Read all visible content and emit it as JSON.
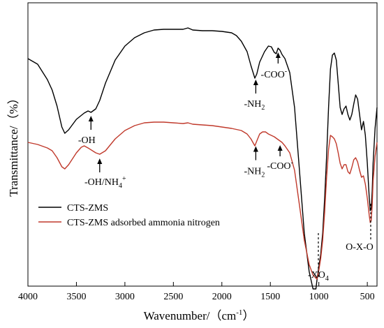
{
  "chart_data": {
    "type": "line",
    "xlabel": "Wavenumber/（cm",
    "xlabel_sup": "-1",
    "xlabel_end": "）",
    "ylabel": "Transmittance/（%）",
    "xlim": [
      4000,
      400
    ],
    "x_reversed": true,
    "y_ticks_shown": false,
    "xticks": [
      {
        "value": 4000,
        "label": "4000"
      },
      {
        "value": 3500,
        "label": "3500"
      },
      {
        "value": 3000,
        "label": "3000"
      },
      {
        "value": 2500,
        "label": "2500"
      },
      {
        "value": 2000,
        "label": "2000"
      },
      {
        "value": 1500,
        "label": "1500"
      },
      {
        "value": 1000,
        "label": "1000"
      },
      {
        "value": 500,
        "label": "500"
      }
    ],
    "legend_position": "bottom-left",
    "series": [
      {
        "name": "CTS-ZMS",
        "color": "#000000",
        "points": [
          [
            4000,
            80
          ],
          [
            3900,
            88
          ],
          [
            3800,
            110
          ],
          [
            3750,
            125
          ],
          [
            3700,
            148
          ],
          [
            3650,
            178
          ],
          [
            3620,
            187
          ],
          [
            3580,
            182
          ],
          [
            3500,
            167
          ],
          [
            3420,
            158
          ],
          [
            3380,
            155
          ],
          [
            3350,
            157
          ],
          [
            3300,
            152
          ],
          [
            3260,
            140
          ],
          [
            3200,
            115
          ],
          [
            3100,
            82
          ],
          [
            3000,
            62
          ],
          [
            2900,
            50
          ],
          [
            2800,
            43
          ],
          [
            2700,
            39
          ],
          [
            2600,
            38
          ],
          [
            2500,
            38
          ],
          [
            2400,
            38
          ],
          [
            2350,
            36
          ],
          [
            2300,
            39
          ],
          [
            2200,
            40
          ],
          [
            2100,
            40
          ],
          [
            2000,
            41
          ],
          [
            1900,
            43
          ],
          [
            1850,
            47
          ],
          [
            1800,
            55
          ],
          [
            1740,
            70
          ],
          [
            1700,
            90
          ],
          [
            1660,
            108
          ],
          [
            1640,
            102
          ],
          [
            1610,
            85
          ],
          [
            1560,
            70
          ],
          [
            1520,
            62
          ],
          [
            1490,
            63
          ],
          [
            1460,
            71
          ],
          [
            1440,
            73
          ],
          [
            1420,
            65
          ],
          [
            1400,
            68
          ],
          [
            1380,
            74
          ],
          [
            1350,
            80
          ],
          [
            1300,
            100
          ],
          [
            1250,
            150
          ],
          [
            1200,
            240
          ],
          [
            1150,
            330
          ],
          [
            1100,
            385
          ],
          [
            1060,
            410
          ],
          [
            1030,
            410
          ],
          [
            1020,
            398
          ],
          [
            1000,
            378
          ],
          [
            980,
            360
          ],
          [
            960,
            330
          ],
          [
            940,
            280
          ],
          [
            920,
            220
          ],
          [
            900,
            150
          ],
          [
            880,
            95
          ],
          [
            860,
            75
          ],
          [
            840,
            72
          ],
          [
            820,
            82
          ],
          [
            800,
            115
          ],
          [
            780,
            150
          ],
          [
            760,
            160
          ],
          [
            740,
            152
          ],
          [
            720,
            148
          ],
          [
            700,
            160
          ],
          [
            680,
            168
          ],
          [
            660,
            160
          ],
          [
            640,
            145
          ],
          [
            620,
            132
          ],
          [
            600,
            138
          ],
          [
            580,
            160
          ],
          [
            560,
            182
          ],
          [
            540,
            170
          ],
          [
            520,
            190
          ],
          [
            500,
            230
          ],
          [
            480,
            280
          ],
          [
            470,
            298
          ],
          [
            460,
            295
          ],
          [
            450,
            270
          ],
          [
            440,
            230
          ],
          [
            420,
            180
          ],
          [
            400,
            150
          ]
        ]
      },
      {
        "name": "CTS-ZMS adsorbed ammonia nitrogen",
        "color": "#c0392b",
        "points": [
          [
            4000,
            200
          ],
          [
            3900,
            203
          ],
          [
            3800,
            208
          ],
          [
            3750,
            212
          ],
          [
            3700,
            222
          ],
          [
            3650,
            235
          ],
          [
            3620,
            238
          ],
          [
            3580,
            232
          ],
          [
            3500,
            215
          ],
          [
            3450,
            207
          ],
          [
            3420,
            205
          ],
          [
            3380,
            208
          ],
          [
            3300,
            215
          ],
          [
            3260,
            217
          ],
          [
            3200,
            212
          ],
          [
            3100,
            195
          ],
          [
            3000,
            183
          ],
          [
            2900,
            176
          ],
          [
            2800,
            172
          ],
          [
            2700,
            171
          ],
          [
            2600,
            171
          ],
          [
            2500,
            172
          ],
          [
            2400,
            173
          ],
          [
            2350,
            172
          ],
          [
            2300,
            174
          ],
          [
            2200,
            175
          ],
          [
            2100,
            176
          ],
          [
            2000,
            178
          ],
          [
            1900,
            180
          ],
          [
            1800,
            183
          ],
          [
            1740,
            188
          ],
          [
            1700,
            195
          ],
          [
            1660,
            205
          ],
          [
            1640,
            198
          ],
          [
            1610,
            188
          ],
          [
            1580,
            185
          ],
          [
            1550,
            185
          ],
          [
            1520,
            188
          ],
          [
            1490,
            190
          ],
          [
            1460,
            192
          ],
          [
            1420,
            196
          ],
          [
            1380,
            200
          ],
          [
            1350,
            205
          ],
          [
            1300,
            215
          ],
          [
            1250,
            240
          ],
          [
            1200,
            290
          ],
          [
            1150,
            340
          ],
          [
            1100,
            375
          ],
          [
            1060,
            390
          ],
          [
            1020,
            396
          ],
          [
            1000,
            383
          ],
          [
            980,
            366
          ],
          [
            960,
            340
          ],
          [
            940,
            300
          ],
          [
            920,
            250
          ],
          [
            900,
            210
          ],
          [
            880,
            190
          ],
          [
            860,
            192
          ],
          [
            840,
            195
          ],
          [
            820,
            202
          ],
          [
            800,
            215
          ],
          [
            780,
            230
          ],
          [
            760,
            238
          ],
          [
            740,
            232
          ],
          [
            720,
            232
          ],
          [
            700,
            242
          ],
          [
            680,
            245
          ],
          [
            660,
            236
          ],
          [
            640,
            225
          ],
          [
            620,
            222
          ],
          [
            600,
            228
          ],
          [
            580,
            240
          ],
          [
            560,
            250
          ],
          [
            540,
            248
          ],
          [
            520,
            260
          ],
          [
            500,
            280
          ],
          [
            480,
            305
          ],
          [
            470,
            315
          ],
          [
            460,
            312
          ],
          [
            450,
            290
          ],
          [
            440,
            255
          ],
          [
            420,
            220
          ],
          [
            400,
            200
          ]
        ]
      }
    ],
    "annotations": [
      {
        "text": "-OH",
        "x": 3350,
        "arrow": true
      },
      {
        "text": "-OH/NH",
        "sub": "4",
        "sup": "+",
        "x": 3260,
        "arrow": true
      },
      {
        "text": "-NH",
        "sub": "2",
        "x": 1650,
        "arrow": true,
        "series": 0
      },
      {
        "text": "-COO",
        "sup": "-",
        "x": 1420,
        "arrow": true,
        "series": 0
      },
      {
        "text": "-NH",
        "sub": "2",
        "x": 1650,
        "arrow": true,
        "series": 1
      },
      {
        "text": "-COO",
        "sup": "-",
        "x": 1400,
        "arrow": true,
        "series": 1
      },
      {
        "text": "-XO",
        "sub": "4",
        "x": 1005,
        "dashed": true
      },
      {
        "text": "O-X-O",
        "x": 465,
        "dashed": true
      }
    ]
  }
}
